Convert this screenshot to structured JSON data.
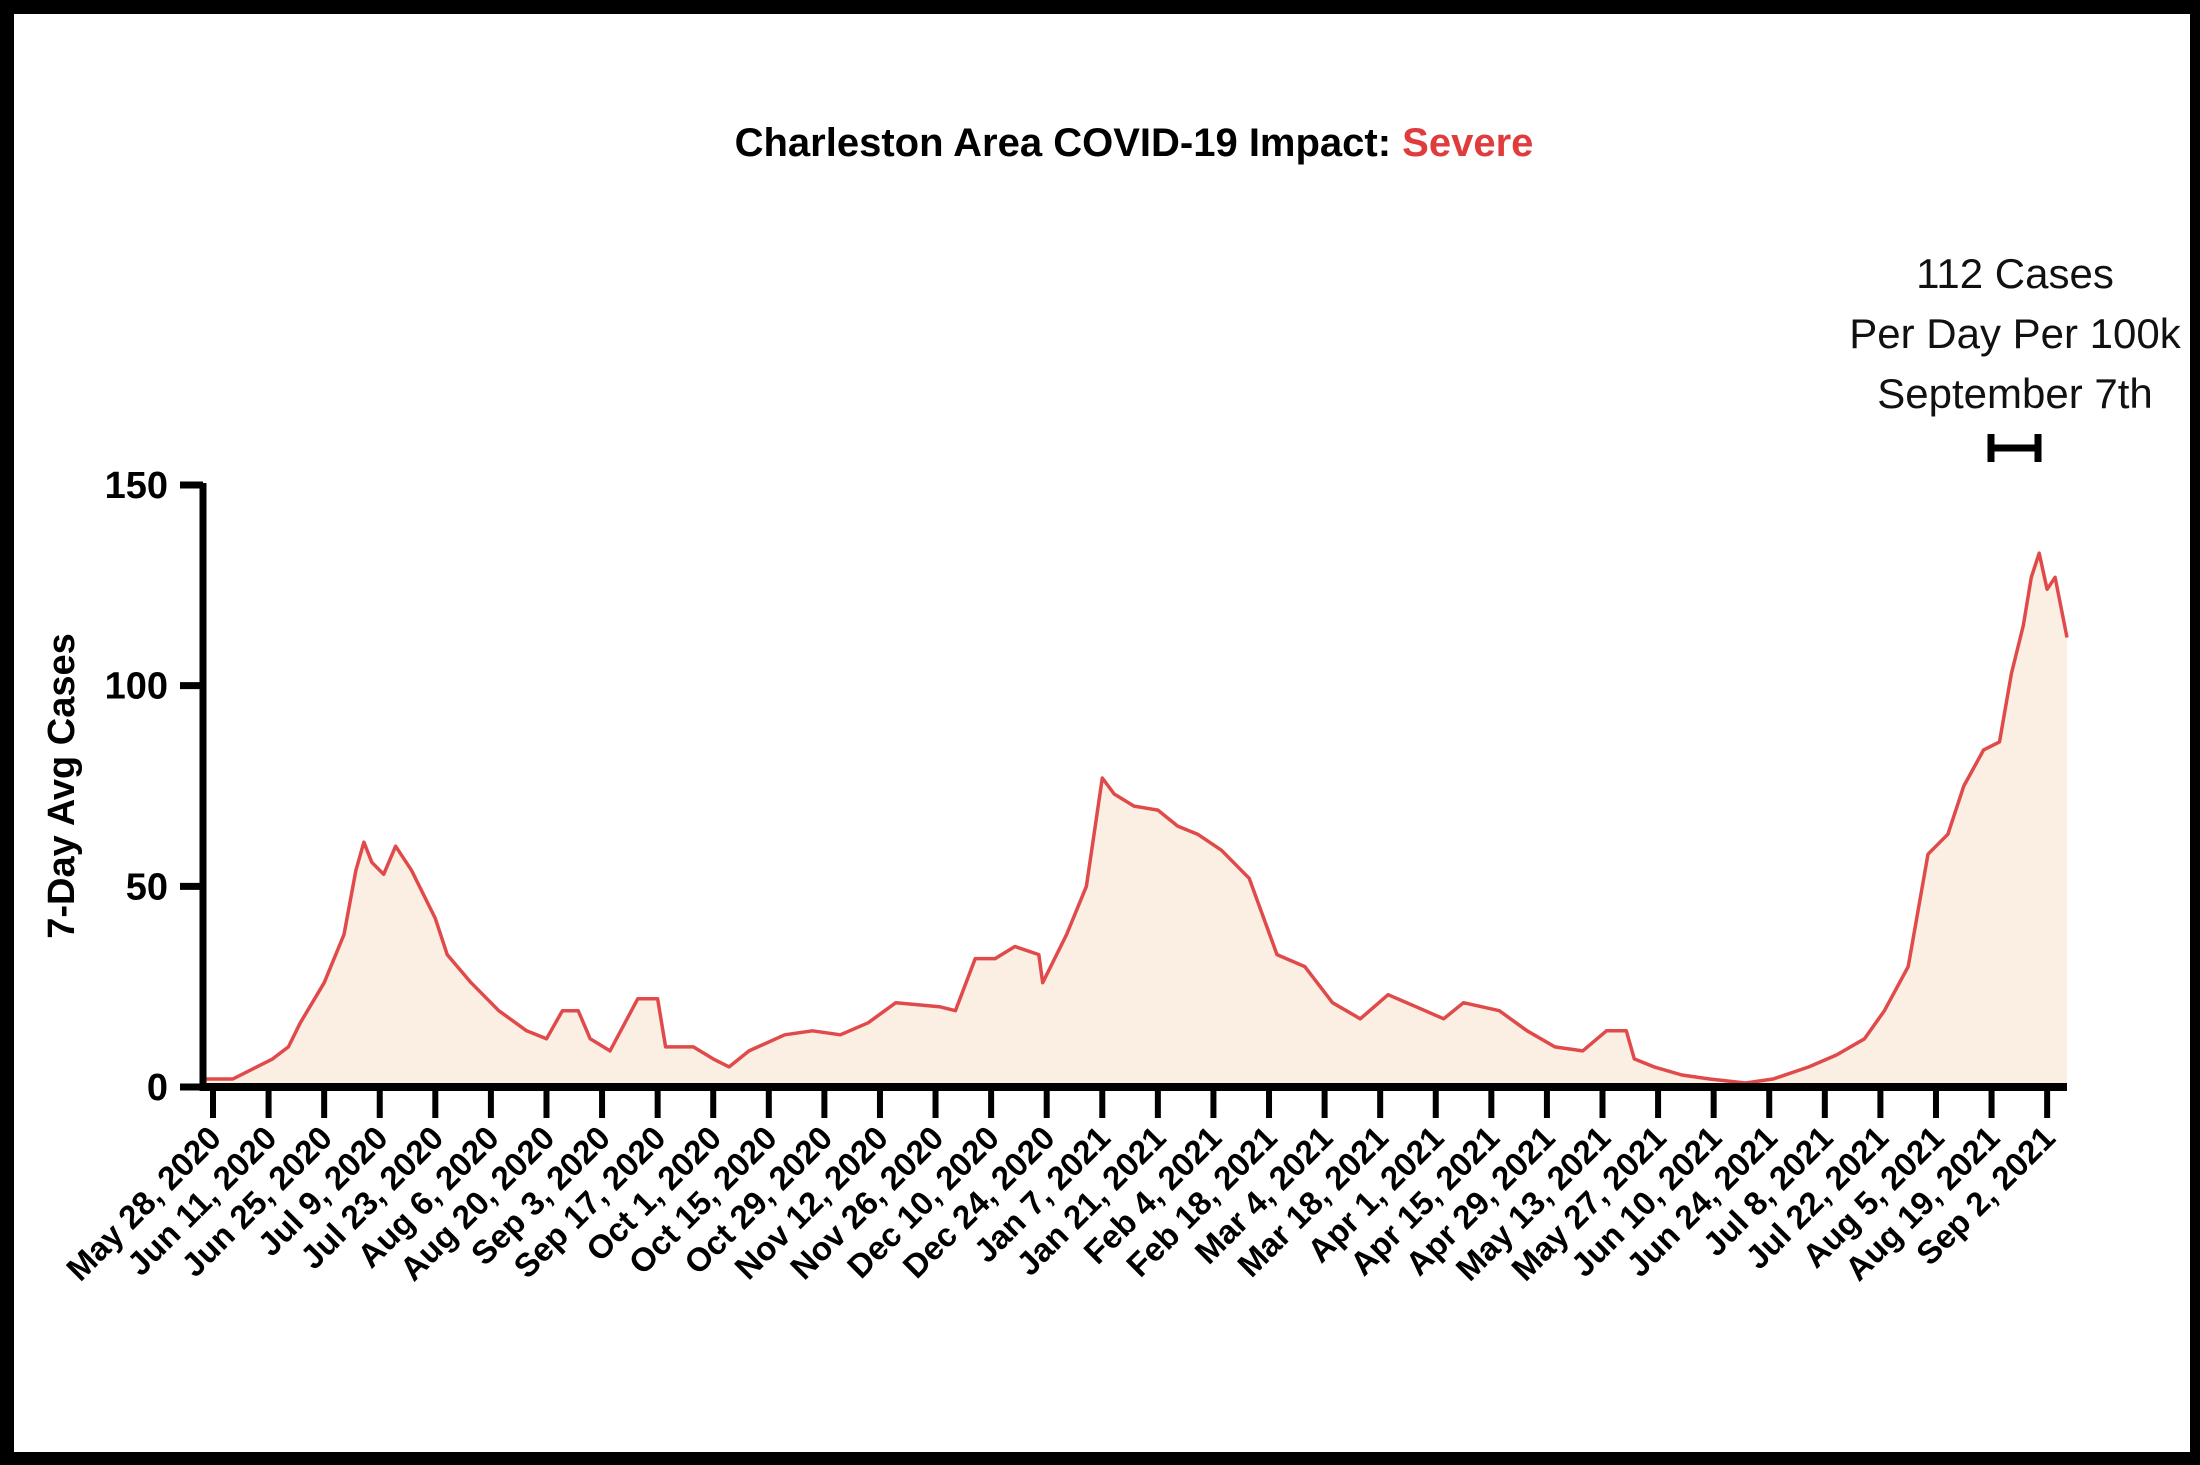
{
  "chart_data": {
    "type": "area",
    "title": "Charleston Area COVID-19 Impact: ",
    "title_status": "Severe",
    "xlabel": "",
    "ylabel": "7-Day Avg Cases",
    "ylim": [
      0,
      150
    ],
    "yticks": [
      "0",
      "50",
      "100",
      "150"
    ],
    "grid": false,
    "x_start_date": "May 28, 2020",
    "x_tick_interval_days": 14,
    "xtick_labels": [
      "May 28, 2020",
      "Jun 11, 2020",
      "Jun 25, 2020",
      "Jul 9, 2020",
      "Jul 23, 2020",
      "Aug 6, 2020",
      "Aug 20, 2020",
      "Sep 3, 2020",
      "Sep 17, 2020",
      "Oct 1, 2020",
      "Oct 15, 2020",
      "Oct 29, 2020",
      "Nov 12, 2020",
      "Nov 26, 2020",
      "Dec 10, 2020",
      "Dec 24, 2020",
      "Jan 7, 2021",
      "Jan 21, 2021",
      "Feb 4, 2021",
      "Feb 18, 2021",
      "Mar 4, 2021",
      "Mar 18, 2021",
      "Apr 1, 2021",
      "Apr 15, 2021",
      "Apr 29, 2021",
      "May 13, 2021",
      "May 27, 2021",
      "Jun 10, 2021",
      "Jun 24, 2021",
      "Jul 8, 2021",
      "Jul 22, 2021",
      "Aug 5, 2021",
      "Aug 19, 2021",
      "Sep 2, 2021"
    ],
    "series": [
      {
        "name": "7-Day Avg Cases",
        "x_days_since_start": [
          -3,
          5,
          15,
          19,
          22,
          28,
          33,
          36,
          38,
          40,
          43,
          46,
          50,
          56,
          59,
          65,
          72,
          79,
          84,
          88,
          92,
          95,
          100,
          107,
          112,
          114,
          121,
          126,
          130,
          135,
          144,
          151,
          158,
          165,
          172,
          183,
          187,
          192,
          197,
          202,
          208,
          209,
          215,
          220,
          224,
          227,
          232,
          238,
          243,
          248,
          254,
          261,
          268,
          275,
          282,
          289,
          296,
          303,
          310,
          315,
          324,
          331,
          338,
          345,
          351,
          356,
          358,
          363,
          370,
          377,
          386,
          393,
          402,
          409,
          416,
          421,
          427,
          432,
          437,
          441,
          446,
          450,
          453,
          456,
          458,
          460,
          462,
          464,
          467
        ],
        "values": [
          2,
          2,
          7,
          10,
          16,
          26,
          38,
          54,
          61,
          56,
          53,
          60,
          54,
          42,
          33,
          26,
          19,
          14,
          12,
          19,
          19,
          12,
          9,
          22,
          22,
          10,
          10,
          7,
          5,
          9,
          13,
          14,
          13,
          16,
          21,
          20,
          19,
          32,
          32,
          35,
          33,
          26,
          38,
          50,
          77,
          73,
          70,
          69,
          65,
          63,
          59,
          52,
          33,
          30,
          21,
          17,
          23,
          20,
          17,
          21,
          19,
          14,
          10,
          9,
          14,
          14,
          7,
          5,
          3,
          2,
          1,
          2,
          5,
          8,
          12,
          19,
          30,
          58,
          63,
          75,
          84,
          86,
          103,
          115,
          127,
          133,
          124,
          127,
          112
        ]
      }
    ],
    "annotation": {
      "lines": [
        "112 Cases",
        "Per Day Per 100k",
        "September 7th"
      ]
    },
    "colors": {
      "line": "#e04a4a",
      "fill": "#fbefe3",
      "status": "#e03c3c"
    }
  }
}
